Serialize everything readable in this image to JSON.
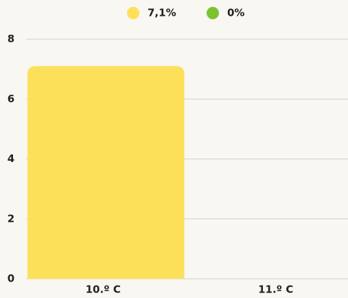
{
  "chart_data": {
    "type": "bar",
    "categories": [
      "10.º C",
      "11.º C"
    ],
    "series": [
      {
        "name": "7,1%",
        "color": "#fde05a",
        "values": [
          7.1,
          null
        ]
      },
      {
        "name": "0%",
        "color": "#7cc230",
        "values": [
          null,
          0
        ]
      }
    ],
    "ylim": [
      0,
      8
    ],
    "yticks": [
      0,
      2,
      4,
      6,
      8
    ],
    "grid": true,
    "legend": "top"
  }
}
